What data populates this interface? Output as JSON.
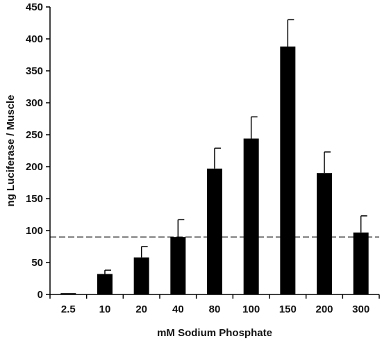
{
  "chart_data": {
    "type": "bar",
    "title": "",
    "xlabel": "mM Sodium Phosphate",
    "ylabel": "ng Luciferase / Muscle",
    "categories": [
      "2.5",
      "10",
      "20",
      "40",
      "80",
      "100",
      "150",
      "200",
      "300"
    ],
    "values": [
      2,
      32,
      58,
      90,
      197,
      244,
      388,
      190,
      97
    ],
    "error_upper": [
      0,
      6,
      17,
      27,
      32,
      34,
      42,
      33,
      26
    ],
    "ylim": [
      0,
      450
    ],
    "yticks": [
      0,
      50,
      100,
      150,
      200,
      250,
      300,
      350,
      400,
      450
    ],
    "reference_line": {
      "value": 90,
      "style": "dashed"
    },
    "bar_color": "#000000",
    "grid": false,
    "legend": "none"
  }
}
